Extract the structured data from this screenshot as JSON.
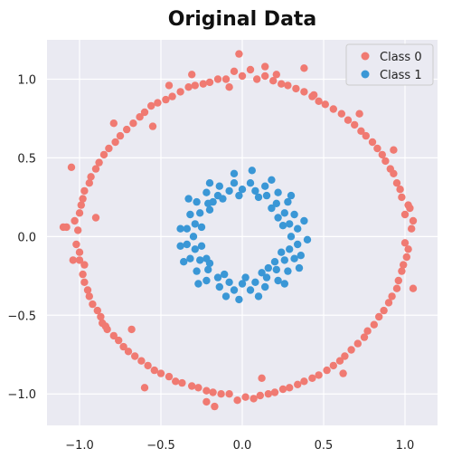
{
  "chart_data": {
    "type": "scatter",
    "title": "Original Data",
    "xlabel": "",
    "ylabel": "",
    "xlim": [
      -1.2,
      1.2
    ],
    "ylim": [
      -1.2,
      1.25
    ],
    "x_ticks": [
      -1.0,
      -0.5,
      0.0,
      0.5,
      1.0
    ],
    "x_tick_labels": [
      "−1.0",
      "−0.5",
      "0.0",
      "0.5",
      "1.0"
    ],
    "y_ticks": [
      -1.0,
      -0.5,
      0.0,
      0.5,
      1.0
    ],
    "y_tick_labels": [
      "−1.0",
      "−0.5",
      "0.0",
      "0.5",
      "1.0"
    ],
    "grid": true,
    "legend_position": "top-right",
    "background_color": "#eaeaf2",
    "grid_color": "#ffffff",
    "series": [
      {
        "name": "Class 0",
        "color": "#f07a72",
        "points": [
          [
            1.0,
            0.14
          ],
          [
            0.95,
            0.34
          ],
          [
            0.86,
            0.52
          ],
          [
            0.73,
            0.67
          ],
          [
            0.56,
            0.81
          ],
          [
            0.38,
            0.92
          ],
          [
            0.19,
            0.99
          ],
          [
            0.0,
            1.02
          ],
          [
            -0.2,
            0.98
          ],
          [
            -0.38,
            0.92
          ],
          [
            -0.56,
            0.83
          ],
          [
            -0.71,
            0.68
          ],
          [
            -0.85,
            0.52
          ],
          [
            -0.94,
            0.34
          ],
          [
            -1.0,
            0.15
          ],
          [
            -1.02,
            -0.05
          ],
          [
            -0.98,
            -0.24
          ],
          [
            -0.92,
            -0.43
          ],
          [
            -0.83,
            -0.59
          ],
          [
            -0.7,
            -0.73
          ],
          [
            -0.54,
            -0.85
          ],
          [
            -0.37,
            -0.93
          ],
          [
            -0.18,
            -0.99
          ],
          [
            0.02,
            -1.02
          ],
          [
            0.2,
            -0.99
          ],
          [
            0.38,
            -0.92
          ],
          [
            0.56,
            -0.82
          ],
          [
            0.71,
            -0.68
          ],
          [
            0.84,
            -0.51
          ],
          [
            0.95,
            -0.33
          ],
          [
            1.01,
            -0.13
          ],
          [
            1.04,
            0.05
          ],
          [
            0.98,
            0.25
          ],
          [
            0.91,
            0.43
          ],
          [
            0.8,
            0.6
          ],
          [
            0.65,
            0.74
          ],
          [
            0.47,
            0.86
          ],
          [
            0.28,
            0.96
          ],
          [
            0.09,
            1.0
          ],
          [
            -0.1,
            1.0
          ],
          [
            -0.29,
            0.96
          ],
          [
            -0.47,
            0.87
          ],
          [
            -0.63,
            0.76
          ],
          [
            -0.78,
            0.6
          ],
          [
            -0.9,
            0.43
          ],
          [
            -0.98,
            0.24
          ],
          [
            -1.01,
            0.04
          ],
          [
            -1.0,
            -0.15
          ],
          [
            -0.95,
            -0.34
          ],
          [
            -0.87,
            -0.51
          ],
          [
            -0.76,
            -0.66
          ],
          [
            -0.62,
            -0.79
          ],
          [
            -0.45,
            -0.89
          ],
          [
            -0.27,
            -0.96
          ],
          [
            -0.08,
            -1.0
          ],
          [
            0.11,
            -1.01
          ],
          [
            0.29,
            -0.96
          ],
          [
            0.47,
            -0.88
          ],
          [
            0.63,
            -0.76
          ],
          [
            0.77,
            -0.6
          ],
          [
            0.9,
            -0.42
          ],
          [
            0.98,
            -0.22
          ],
          [
            1.0,
            -0.04
          ],
          [
            1.02,
            0.2
          ],
          [
            0.93,
            0.4
          ],
          [
            0.83,
            0.56
          ],
          [
            0.69,
            0.71
          ],
          [
            0.51,
            0.84
          ],
          [
            0.33,
            0.94
          ],
          [
            0.14,
            1.02
          ],
          [
            -0.05,
            1.05
          ],
          [
            -0.24,
            0.97
          ],
          [
            -0.43,
            0.89
          ],
          [
            -0.6,
            0.79
          ],
          [
            -0.75,
            0.64
          ],
          [
            -0.88,
            0.47
          ],
          [
            -0.97,
            0.29
          ],
          [
            -1.03,
            0.1
          ],
          [
            -1.0,
            -0.1
          ],
          [
            -0.97,
            -0.29
          ],
          [
            -0.89,
            -0.47
          ],
          [
            -0.79,
            -0.63
          ],
          [
            -0.66,
            -0.76
          ],
          [
            -0.5,
            -0.87
          ],
          [
            -0.31,
            -0.95
          ],
          [
            -0.13,
            -1.0
          ],
          [
            0.07,
            -1.03
          ],
          [
            0.25,
            -0.97
          ],
          [
            0.43,
            -0.9
          ],
          [
            0.6,
            -0.79
          ],
          [
            0.75,
            -0.64
          ],
          [
            0.87,
            -0.47
          ],
          [
            0.96,
            -0.28
          ],
          [
            1.02,
            -0.08
          ],
          [
            1.05,
            0.1
          ],
          [
            0.97,
            0.3
          ],
          [
            0.88,
            0.48
          ],
          [
            0.76,
            0.64
          ],
          [
            0.61,
            0.78
          ],
          [
            0.43,
            0.89
          ],
          [
            0.24,
            0.97
          ],
          [
            0.05,
            1.06
          ],
          [
            -0.15,
            1.0
          ],
          [
            -0.33,
            0.95
          ],
          [
            -0.52,
            0.85
          ],
          [
            -0.67,
            0.72
          ],
          [
            -0.82,
            0.56
          ],
          [
            -0.93,
            0.38
          ],
          [
            -0.99,
            0.2
          ],
          [
            -1.08,
            0.06
          ],
          [
            -1.04,
            -0.15
          ],
          [
            -0.94,
            -0.38
          ],
          [
            -0.86,
            -0.55
          ],
          [
            -0.73,
            -0.7
          ],
          [
            -0.58,
            -0.82
          ],
          [
            -0.41,
            -0.92
          ],
          [
            -0.22,
            -0.98
          ],
          [
            -0.03,
            -1.04
          ],
          [
            0.16,
            -1.0
          ],
          [
            0.34,
            -0.94
          ],
          [
            0.52,
            -0.85
          ],
          [
            0.67,
            -0.72
          ],
          [
            0.81,
            -0.56
          ],
          [
            0.92,
            -0.38
          ],
          [
            0.99,
            -0.18
          ],
          [
            -0.02,
            1.16
          ],
          [
            0.14,
            1.08
          ],
          [
            -0.31,
            1.03
          ],
          [
            -1.1,
            0.06
          ],
          [
            -0.97,
            -0.18
          ],
          [
            1.05,
            -0.33
          ],
          [
            -0.22,
            -1.05
          ],
          [
            0.12,
            -0.9
          ],
          [
            -0.6,
            -0.96
          ],
          [
            -0.45,
            0.96
          ],
          [
            0.38,
            1.07
          ],
          [
            -0.84,
            -0.57
          ],
          [
            0.72,
            0.78
          ],
          [
            -0.08,
            0.95
          ],
          [
            0.21,
            1.03
          ],
          [
            -0.79,
            0.72
          ],
          [
            -0.55,
            0.7
          ],
          [
            0.93,
            0.55
          ],
          [
            -0.9,
            0.12
          ],
          [
            0.62,
            -0.87
          ],
          [
            -1.05,
            0.44
          ],
          [
            1.03,
            0.18
          ],
          [
            -0.68,
            -0.59
          ],
          [
            0.44,
            0.9
          ],
          [
            -0.17,
            -1.08
          ]
        ]
      },
      {
        "name": "Class 1",
        "color": "#3a97d6",
        "points": [
          [
            0.3,
            0.0
          ],
          [
            0.29,
            0.08
          ],
          [
            0.26,
            0.15
          ],
          [
            0.21,
            0.21
          ],
          [
            0.15,
            0.26
          ],
          [
            0.08,
            0.29
          ],
          [
            0.0,
            0.3
          ],
          [
            -0.08,
            0.29
          ],
          [
            -0.15,
            0.26
          ],
          [
            -0.21,
            0.21
          ],
          [
            -0.26,
            0.15
          ],
          [
            -0.29,
            0.08
          ],
          [
            -0.3,
            0.0
          ],
          [
            -0.29,
            -0.08
          ],
          [
            -0.26,
            -0.15
          ],
          [
            -0.21,
            -0.21
          ],
          [
            -0.15,
            -0.26
          ],
          [
            -0.08,
            -0.29
          ],
          [
            0.0,
            -0.3
          ],
          [
            0.08,
            -0.29
          ],
          [
            0.15,
            -0.26
          ],
          [
            0.21,
            -0.21
          ],
          [
            0.26,
            -0.15
          ],
          [
            0.29,
            -0.08
          ],
          [
            0.34,
            0.05
          ],
          [
            0.32,
            0.14
          ],
          [
            0.28,
            0.22
          ],
          [
            0.22,
            0.28
          ],
          [
            0.14,
            0.32
          ],
          [
            0.05,
            0.34
          ],
          [
            -0.05,
            0.34
          ],
          [
            -0.14,
            0.32
          ],
          [
            -0.22,
            0.28
          ],
          [
            -0.28,
            0.22
          ],
          [
            -0.32,
            0.14
          ],
          [
            -0.34,
            0.05
          ],
          [
            -0.34,
            -0.05
          ],
          [
            -0.32,
            -0.14
          ],
          [
            -0.28,
            -0.22
          ],
          [
            -0.22,
            -0.28
          ],
          [
            -0.14,
            -0.32
          ],
          [
            -0.05,
            -0.34
          ],
          [
            0.05,
            -0.34
          ],
          [
            0.14,
            -0.32
          ],
          [
            0.22,
            -0.28
          ],
          [
            0.28,
            -0.22
          ],
          [
            0.32,
            -0.14
          ],
          [
            0.34,
            -0.05
          ],
          [
            0.25,
            0.07
          ],
          [
            0.24,
            -0.1
          ],
          [
            0.18,
            0.18
          ],
          [
            0.1,
            0.25
          ],
          [
            -0.02,
            0.26
          ],
          [
            -0.12,
            0.24
          ],
          [
            -0.2,
            0.17
          ],
          [
            -0.25,
            0.06
          ],
          [
            -0.25,
            -0.06
          ],
          [
            -0.2,
            -0.17
          ],
          [
            -0.11,
            -0.24
          ],
          [
            0.02,
            -0.26
          ],
          [
            0.12,
            -0.23
          ],
          [
            0.2,
            -0.16
          ],
          [
            0.38,
            0.1
          ],
          [
            0.36,
            -0.12
          ],
          [
            0.3,
            0.26
          ],
          [
            0.18,
            0.36
          ],
          [
            -0.05,
            0.4
          ],
          [
            -0.2,
            0.34
          ],
          [
            -0.33,
            0.24
          ],
          [
            -0.38,
            0.05
          ],
          [
            -0.36,
            -0.16
          ],
          [
            -0.27,
            -0.3
          ],
          [
            -0.1,
            -0.38
          ],
          [
            0.1,
            -0.38
          ],
          [
            0.26,
            -0.3
          ],
          [
            0.35,
            -0.2
          ],
          [
            0.22,
            0.12
          ],
          [
            -0.18,
            0.22
          ],
          [
            -0.22,
            -0.14
          ],
          [
            0.16,
            -0.2
          ],
          [
            0.06,
            0.42
          ],
          [
            -0.38,
            -0.06
          ],
          [
            0.4,
            -0.02
          ],
          [
            -0.02,
            -0.4
          ]
        ]
      }
    ]
  }
}
